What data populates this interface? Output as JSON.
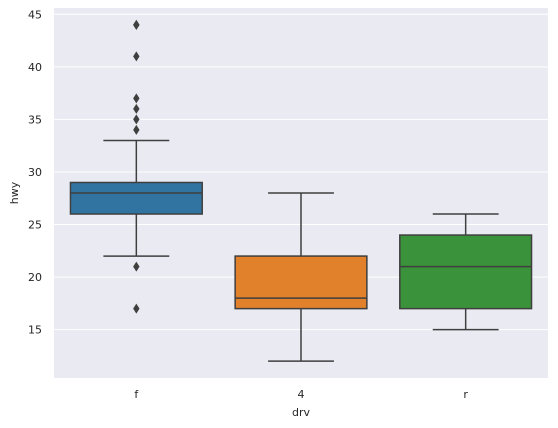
{
  "chart_data": {
    "type": "box",
    "xlabel": "drv",
    "ylabel": "hwy",
    "ylim": [
      10.4,
      45.6
    ],
    "yticks": [
      15,
      20,
      25,
      30,
      35,
      40,
      45
    ],
    "grid": true,
    "categories": [
      "f",
      "4",
      "r"
    ],
    "colors": [
      "#3274a1",
      "#e1812c",
      "#3a923a"
    ],
    "boxes": [
      {
        "category": "f",
        "whisker_low": 22,
        "q1": 26,
        "median": 28,
        "q3": 29,
        "whisker_high": 33,
        "outliers": [
          44,
          44,
          41,
          37,
          36,
          35,
          34,
          21,
          17
        ]
      },
      {
        "category": "4",
        "whisker_low": 12,
        "q1": 17,
        "median": 18,
        "q3": 22,
        "whisker_high": 28,
        "outliers": []
      },
      {
        "category": "r",
        "whisker_low": 15,
        "q1": 17,
        "median": 21,
        "q3": 24,
        "whisker_high": 26,
        "outliers": []
      }
    ]
  }
}
